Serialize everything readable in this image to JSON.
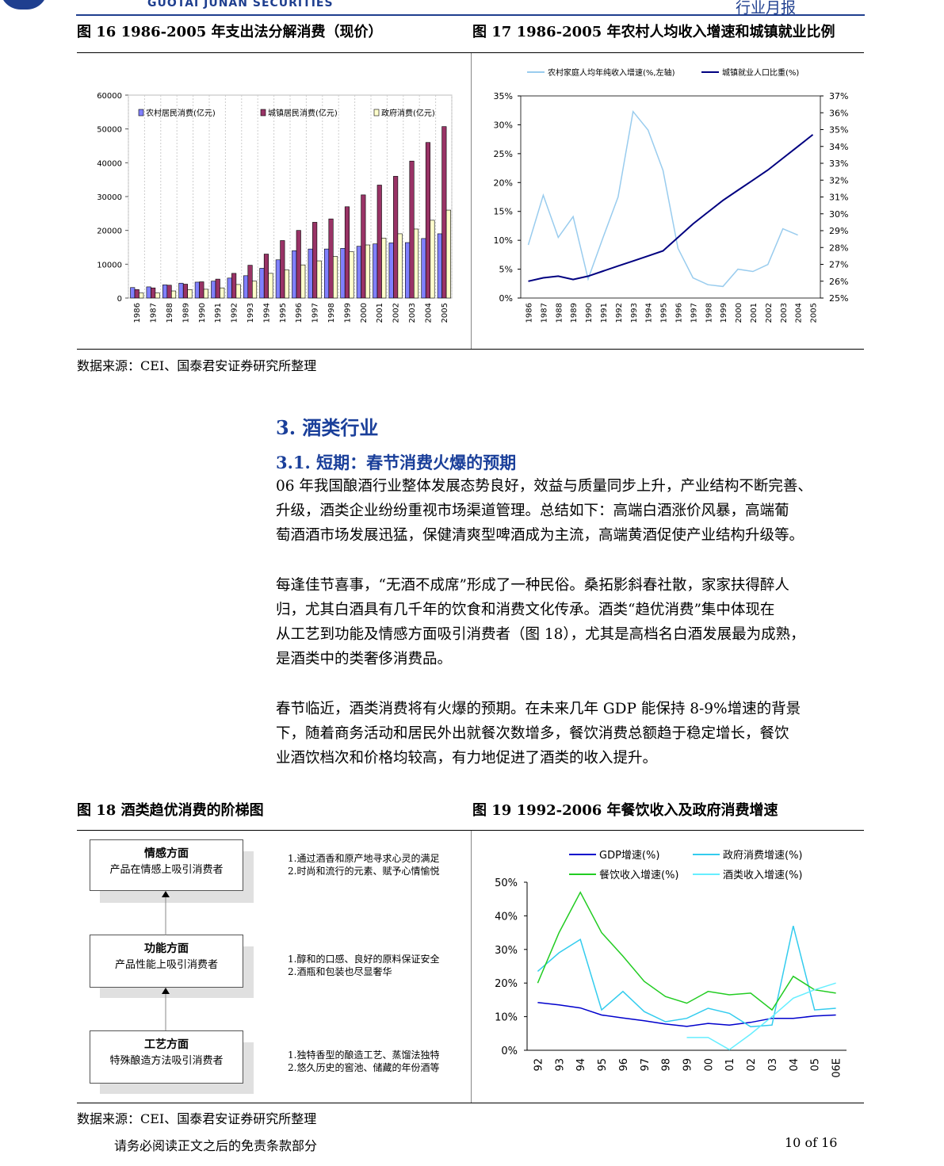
{
  "header": {
    "brand": "GUOTAI JUNAN SECURITIES",
    "report_type": "行业月报"
  },
  "fig16": {
    "title": "图 16 1986-2005 年支出法分解消费（现价）"
  },
  "fig17": {
    "title": "图 17 1986-2005 年农村人均收入增速和城镇就业比例"
  },
  "source1": "数据来源：CEI、国泰君安证券研究所整理",
  "section3": {
    "heading": "3.  酒类行业"
  },
  "section31": {
    "heading": "3.1. 短期：春节消费火爆的预期"
  },
  "paragraphs": [
    [
      "06 年我国酿酒行业整体发展态势良好，效益与质量同步上升，产业结构不断完善、",
      "升级，酒类企业纷纷重视市场渠道管理。总结如下：高端白酒涨价风暴，高端葡",
      "萄酒酒市场发展迅猛，保健清爽型啤酒成为主流，高端黄酒促使产业结构升级等。"
    ],
    [
      "每逢佳节喜事，“无酒不成席”形成了一种民俗。桑拓影斜春社散，家家扶得醉人",
      "归，尤其白酒具有几千年的饮食和消费文化传承。酒类“趋优消费”集中体现在",
      "从工艺到功能及情感方面吸引消费者（图 18），尤其是高档名白酒发展最为成熟，",
      "是酒类中的类奢侈消费品。"
    ],
    [
      "春节临近，酒类消费将有火爆的预期。在未来几年 GDP 能保持 8-9%增速的背景",
      "下，随着商务活动和居民外出就餐次数增多，餐饮消费总额趋于稳定增长，餐饮",
      "业酒饮档次和价格均较高，有力地促进了酒类的收入提升。"
    ]
  ],
  "fig18": {
    "title": "图 18  酒类趋优消费的阶梯图",
    "steps": [
      {
        "title": "情感方面",
        "subtitle": "产品在情感上吸引消费者",
        "notes": [
          "1.通过酒香和原产地寻求心灵的满足",
          "2.时尚和流行的元素、赋予心情愉悦"
        ]
      },
      {
        "title": "功能方面",
        "subtitle": "产品性能上吸引消费者",
        "notes": [
          "1.醇和的口感、良好的原料保证安全",
          "2.酒瓶和包装也尽显奢华"
        ]
      },
      {
        "title": "工艺方面",
        "subtitle": "特殊酿造方法吸引消费者",
        "notes": [
          "1.独特香型的酿造工艺、蒸馏法独特",
          "2.悠久历史的窖池、储藏的年份酒等"
        ]
      }
    ]
  },
  "fig19": {
    "title": "图 19 1992-2006 年餐饮收入及政府消费增速"
  },
  "source2": "数据来源：CEI、国泰君安证券研究所整理",
  "footer": {
    "disclaimer": "请务必阅读正文之后的免责条款部分",
    "page": "10 of 16"
  },
  "chart_data": [
    {
      "type": "bar",
      "categories": [
        "1986",
        "1987",
        "1988",
        "1989",
        "1990",
        "1991",
        "1992",
        "1993",
        "1994",
        "1995",
        "1996",
        "1997",
        "1998",
        "1999",
        "2000",
        "2001",
        "2002",
        "2003",
        "2004",
        "2005"
      ],
      "series": [
        {
          "name": "农村居民消费(亿元)",
          "color": "#8080ff",
          "values": [
            3100,
            3300,
            3900,
            4400,
            4700,
            5000,
            5900,
            6600,
            8800,
            11300,
            14000,
            14500,
            14500,
            14700,
            15300,
            16000,
            16300,
            16400,
            17600,
            19000
          ]
        },
        {
          "name": "城镇居民消费(亿元)",
          "color": "#993366",
          "values": [
            2500,
            3000,
            3800,
            4100,
            4800,
            5600,
            7300,
            9700,
            13000,
            17000,
            20000,
            22400,
            23400,
            27000,
            30500,
            33400,
            36000,
            40500,
            46000,
            50700
          ]
        },
        {
          "name": "政府消费(亿元)",
          "color": "#ffffcc",
          "values": [
            1500,
            1500,
            2100,
            2500,
            2600,
            3000,
            4000,
            5000,
            7300,
            8300,
            9800,
            11000,
            12300,
            13700,
            15700,
            17700,
            19000,
            20400,
            23000,
            26000
          ]
        }
      ],
      "ylim": [
        0,
        60000
      ],
      "yticks": [
        "0",
        "10000",
        "20000",
        "30000",
        "40000",
        "50000",
        "60000"
      ],
      "legend": "top"
    },
    {
      "type": "line",
      "x": [
        "1986",
        "1987",
        "1988",
        "1989",
        "1990",
        "1991",
        "1992",
        "1993",
        "1994",
        "1995",
        "1996",
        "1997",
        "1998",
        "1999",
        "2000",
        "2001",
        "2002",
        "2003",
        "2004",
        "2005"
      ],
      "series": [
        {
          "name": "农村家庭人均年纯收入增速(%,左轴)",
          "color": "#99ccee",
          "axis": "left",
          "values": [
            9.2,
            17.8,
            10.5,
            14.1,
            3.3,
            10.5,
            17.5,
            32.3,
            29.1,
            22.1,
            8.6,
            3.5,
            2.3,
            2.0,
            5.0,
            4.6,
            5.8,
            12.0,
            10.9,
            null
          ]
        },
        {
          "name": "城镇就业人口比重(%)",
          "color": "#000080",
          "axis": "right",
          "values": [
            26.0,
            26.2,
            26.3,
            26.1,
            26.3,
            26.6,
            26.9,
            27.2,
            27.5,
            27.8,
            28.6,
            29.4,
            30.1,
            30.8,
            31.4,
            32.0,
            32.6,
            33.3,
            34.0,
            34.7
          ]
        }
      ],
      "ylim_left": [
        0,
        35
      ],
      "ylim_right": [
        25,
        37
      ],
      "yticks_left": [
        "0%",
        "5%",
        "10%",
        "15%",
        "20%",
        "25%",
        "30%",
        "35%"
      ],
      "yticks_right": [
        "25%",
        "26%",
        "27%",
        "28%",
        "29%",
        "30%",
        "31%",
        "32%",
        "33%",
        "34%",
        "35%",
        "36%",
        "37%"
      ],
      "legend": "top"
    },
    {
      "type": "line",
      "x": [
        "92",
        "93",
        "94",
        "95",
        "96",
        "97",
        "98",
        "99",
        "00",
        "01",
        "02",
        "03",
        "04",
        "05",
        "06E"
      ],
      "series": [
        {
          "name": "GDP增速(%)",
          "color": "#0000cc",
          "values": [
            14.2,
            13.5,
            12.6,
            10.5,
            9.6,
            8.8,
            7.8,
            7.1,
            8.0,
            7.5,
            8.3,
            9.5,
            9.5,
            10.2,
            10.5
          ]
        },
        {
          "name": "政府消费增速(%)",
          "color": "#33ccee",
          "values": [
            23.5,
            29.0,
            33.0,
            12.0,
            17.5,
            11.5,
            8.5,
            9.5,
            12.5,
            11.0,
            7.0,
            7.5,
            37.0,
            12.0,
            12.5
          ]
        },
        {
          "name": "餐饮收入增速(%)",
          "color": "#22cc22",
          "values": [
            20.0,
            35.0,
            47.0,
            35.0,
            28.0,
            20.5,
            16.0,
            14.0,
            17.5,
            16.5,
            17.0,
            12.0,
            22.0,
            18.0,
            17.0
          ]
        },
        {
          "name": "酒类收入增速(%)",
          "color": "#66eeff",
          "values": [
            null,
            null,
            null,
            null,
            null,
            null,
            null,
            3.8,
            3.8,
            0.2,
            4.8,
            10.0,
            15.5,
            18.0,
            20.0
          ]
        }
      ],
      "ylim": [
        0,
        50
      ],
      "yticks": [
        "0%",
        "10%",
        "20%",
        "30%",
        "40%",
        "50%"
      ],
      "legend": "top"
    }
  ]
}
